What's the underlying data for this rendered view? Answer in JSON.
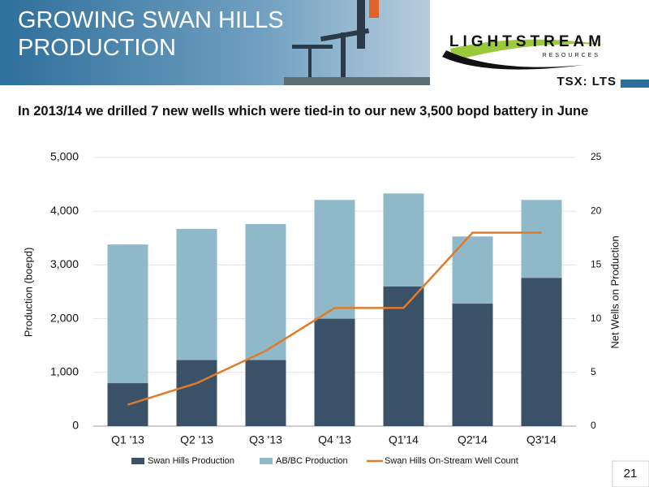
{
  "slide": {
    "title": [
      "GROWING SWAN HILLS",
      "PRODUCTION"
    ],
    "logo": "LIGHTSTREAM",
    "logo_sub": "RESOURCES",
    "ticker": "TSX: LTS",
    "page_number": "21"
  },
  "chart_data": {
    "type": "bar",
    "title": "In 2013/14 we drilled 7 new wells which were tied-in to our new 3,500 bopd battery in June",
    "y_label": "Production (boepd)",
    "y2_label": "Net Wells on Production",
    "categories": [
      "Q1 '13",
      "Q2 '13",
      "Q3 '13",
      "Q4 '13",
      "Q1'14",
      "Q2'14",
      "Q3'14"
    ],
    "stacked": true,
    "grid": true,
    "series": [
      {
        "name": "Swan Hills Production",
        "color": "#3b5168",
        "values": [
          800,
          1230,
          1230,
          2000,
          2600,
          2280,
          2760
        ]
      },
      {
        "name": "AB/BC Production",
        "color": "#8fb9c9",
        "values": [
          2580,
          2440,
          2530,
          2210,
          1730,
          1250,
          1450
        ]
      },
      {
        "name": "Swan Hills On-Stream Well Count",
        "color": "#e07b2a",
        "type": "line",
        "axis": "y2",
        "values": [
          2,
          4,
          7,
          11,
          11,
          18,
          18
        ]
      }
    ],
    "ylim": [
      0,
      5000
    ],
    "yticks": [
      0,
      {
        "value": 1000,
        "label": "1,000"
      },
      {
        "value": 2000,
        "label": "2,000"
      },
      {
        "value": 3000,
        "label": "3,000"
      },
      {
        "value": 4000,
        "label": "4,000"
      },
      {
        "value": 5000,
        "label": "5,000"
      }
    ],
    "y2lim": [
      0,
      25
    ],
    "y2ticks": [
      0,
      5,
      10,
      15,
      20,
      25
    ]
  }
}
